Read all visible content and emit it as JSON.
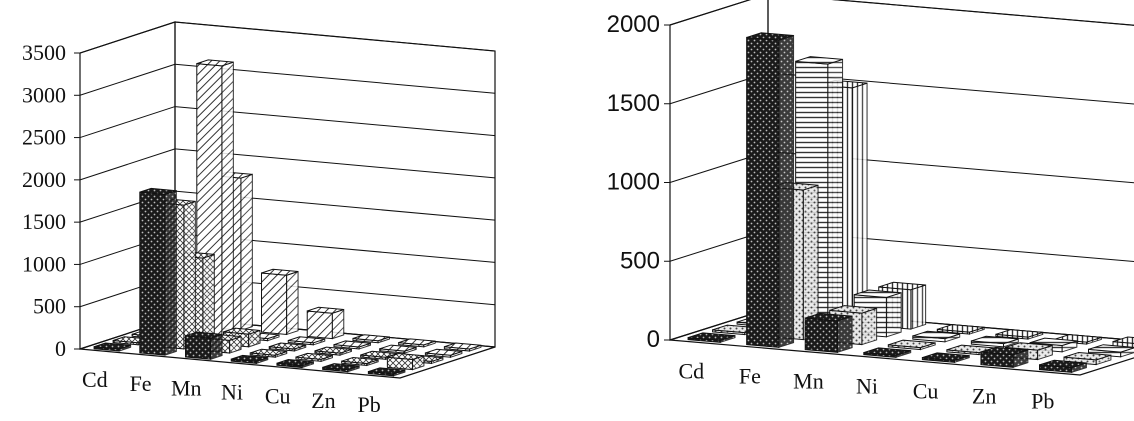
{
  "chart_data": [
    {
      "type": "bar",
      "title": "",
      "xlabel": "",
      "ylabel": "",
      "categories": [
        "Cd",
        "Fe",
        "Mn",
        "Ni",
        "Cu",
        "Zn",
        "Pb"
      ],
      "yticks": [
        "0",
        "500",
        "1000",
        "1500",
        "2000",
        "2500",
        "3000",
        "3500"
      ],
      "ylim": [
        0,
        3500
      ],
      "grid": true,
      "legend": "none",
      "series": [
        {
          "values": [
            10,
            1900,
            250,
            10,
            10,
            10,
            10
          ]
        },
        {
          "values": [
            10,
            1700,
            150,
            10,
            10,
            10,
            120
          ]
        },
        {
          "values": [
            10,
            1000,
            150,
            10,
            10,
            10,
            10
          ]
        },
        {
          "values": [
            10,
            3200,
            10,
            10,
            10,
            10,
            10
          ]
        },
        {
          "values": [
            10,
            1800,
            700,
            300,
            10,
            10,
            10
          ]
        }
      ]
    },
    {
      "type": "bar",
      "title": "",
      "xlabel": "",
      "ylabel": "",
      "categories": [
        "Cd",
        "Fe",
        "Mn",
        "Ni",
        "Cu",
        "Zn",
        "Pb"
      ],
      "yticks": [
        "0",
        "500",
        "1000",
        "1500",
        "2000"
      ],
      "ylim": [
        0,
        2000
      ],
      "grid": true,
      "legend": "none",
      "series": [
        {
          "values": [
            10,
            1950,
            200,
            10,
            10,
            80,
            30
          ]
        },
        {
          "values": [
            10,
            950,
            200,
            10,
            10,
            60,
            30
          ]
        },
        {
          "values": [
            10,
            1700,
            250,
            20,
            20,
            40,
            30
          ]
        },
        {
          "values": [
            10,
            1500,
            250,
            10,
            10,
            10,
            30
          ]
        }
      ]
    }
  ]
}
